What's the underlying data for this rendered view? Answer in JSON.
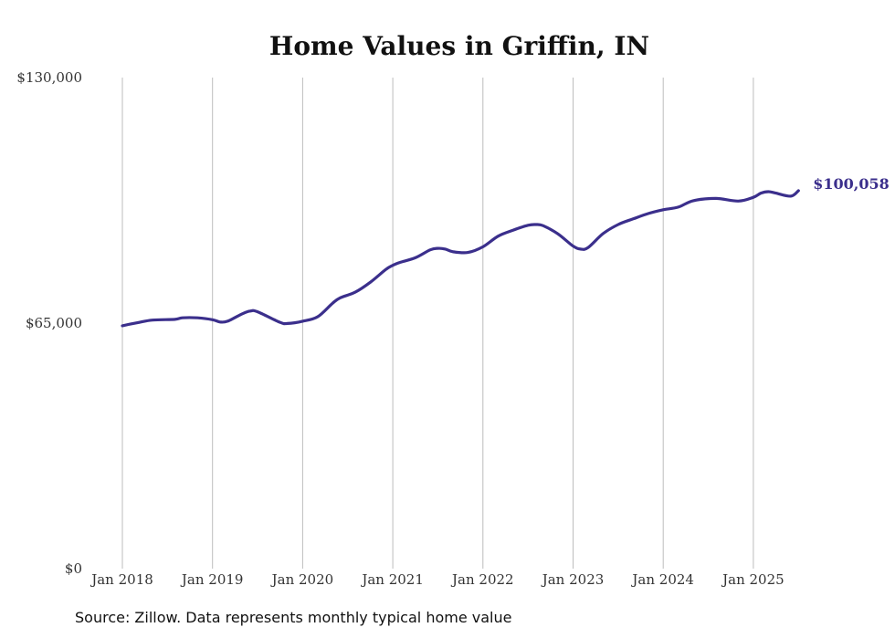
{
  "chart_data": {
    "type": "line",
    "title": "Home Values in Griffin, IN",
    "xlabel": "",
    "ylabel": "",
    "ylim": [
      0,
      130000
    ],
    "yticks": [
      {
        "value": 0,
        "label": "$0"
      },
      {
        "value": 65000,
        "label": "$65,000"
      },
      {
        "value": 130000,
        "label": "$130,000"
      }
    ],
    "xticks": [
      {
        "value": 2018.0,
        "label": "Jan 2018"
      },
      {
        "value": 2019.0,
        "label": "Jan 2019"
      },
      {
        "value": 2020.0,
        "label": "Jan 2020"
      },
      {
        "value": 2021.0,
        "label": "Jan 2021"
      },
      {
        "value": 2022.0,
        "label": "Jan 2022"
      },
      {
        "value": 2023.0,
        "label": "Jan 2023"
      },
      {
        "value": 2024.0,
        "label": "Jan 2024"
      },
      {
        "value": 2025.0,
        "label": "Jan 2025"
      }
    ],
    "xlim": [
      2018.0,
      2025.5
    ],
    "grid": "vertical",
    "series": [
      {
        "color": "#3b2f8c",
        "x": [
          2018.0,
          2018.1667,
          2018.3333,
          2018.5833,
          2018.6667,
          2018.8333,
          2019.0,
          2019.0833,
          2019.1667,
          2019.3333,
          2019.4167,
          2019.5,
          2019.75,
          2019.8333,
          2020.0,
          2020.1667,
          2020.3333,
          2020.4167,
          2020.5833,
          2020.75,
          2020.9167,
          2021.0,
          2021.0833,
          2021.25,
          2021.4167,
          2021.5,
          2021.5833,
          2021.6667,
          2021.8333,
          2022.0,
          2022.1667,
          2022.3333,
          2022.5,
          2022.5833,
          2022.6667,
          2022.8333,
          2023.0,
          2023.0833,
          2023.1667,
          2023.3333,
          2023.5,
          2023.6667,
          2023.8333,
          2024.0,
          2024.1667,
          2024.3333,
          2024.5833,
          2024.8333,
          2025.0,
          2025.0833,
          2025.1667,
          2025.25,
          2025.4167,
          2025.5
        ],
        "values": [
          64300,
          65100,
          65800,
          66000,
          66400,
          66400,
          65900,
          65300,
          65500,
          67500,
          68200,
          68000,
          65200,
          64900,
          65500,
          66700,
          70300,
          71700,
          73200,
          75800,
          79100,
          80300,
          81100,
          82300,
          84400,
          84800,
          84600,
          83900,
          83700,
          85200,
          88000,
          89600,
          90900,
          91100,
          90800,
          88600,
          85400,
          84600,
          85000,
          88700,
          91100,
          92600,
          94000,
          95000,
          95700,
          97400,
          98000,
          97300,
          98300,
          99400,
          99800,
          99400,
          98600,
          100058
        ]
      }
    ],
    "end_label": "$100,058"
  },
  "source_note": "Source: Zillow. Data represents monthly typical home value"
}
